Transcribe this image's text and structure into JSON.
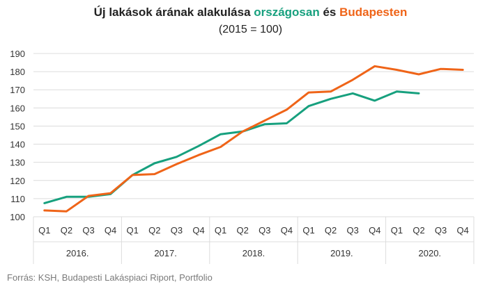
{
  "title": {
    "prefix": "Új lakások árának alakulása ",
    "highlight_green": "országosan",
    "middle": " és ",
    "highlight_orange": "Budapesten"
  },
  "subtitle": "(2015 = 100)",
  "source": "Forrás: KSH, Budapesti Lakáspiaci Riport, Portfolio",
  "colors": {
    "green": "#17a07e",
    "orange": "#ef6418",
    "grid": "#dcdcdc",
    "axis_text": "#333333"
  },
  "chart_data": {
    "type": "line",
    "categories": [
      "Q1",
      "Q2",
      "Q3",
      "Q4",
      "Q1",
      "Q2",
      "Q3",
      "Q4",
      "Q1",
      "Q2",
      "Q3",
      "Q4",
      "Q1",
      "Q2",
      "Q3",
      "Q4",
      "Q1",
      "Q2",
      "Q3",
      "Q4"
    ],
    "years": [
      "2016.",
      "2017.",
      "2018.",
      "2019.",
      "2020."
    ],
    "ylim": [
      100,
      190
    ],
    "yticks": [
      100,
      110,
      120,
      130,
      140,
      150,
      160,
      170,
      180,
      190
    ],
    "grid": true,
    "series": [
      {
        "name": "országosan",
        "color": "#17a07e",
        "values": [
          107.5,
          111,
          111,
          112.5,
          123,
          129.5,
          133,
          139,
          145.5,
          147,
          151,
          151.5,
          161,
          165,
          168,
          164,
          169,
          168,
          null,
          null
        ]
      },
      {
        "name": "Budapesten",
        "color": "#ef6418",
        "values": [
          103.5,
          103,
          111.5,
          113,
          123,
          123.5,
          129,
          134,
          138.5,
          147,
          153,
          159,
          168.5,
          169,
          175.5,
          183,
          181,
          178.5,
          181.5,
          181
        ]
      }
    ]
  }
}
